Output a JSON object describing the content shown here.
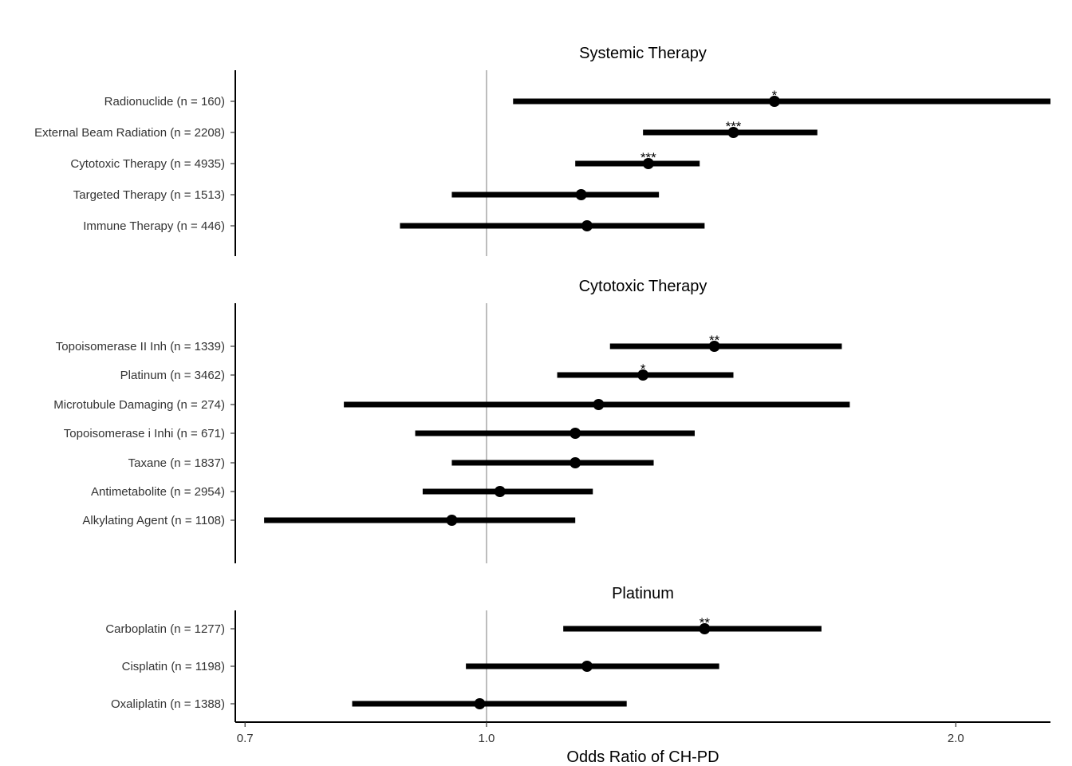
{
  "chart_data": {
    "type": "forest",
    "xlabel": "Odds Ratio of CH-PD",
    "x_scale": "log",
    "xlim": [
      0.69,
      2.3
    ],
    "xticks": [
      0.7,
      1.0,
      2.0
    ],
    "xtick_labels": [
      "0.7",
      "1.0",
      "2.0"
    ],
    "reference_line": 1.0,
    "reference_color": "#bdbdbd",
    "mark_color": "#000000",
    "panels": [
      {
        "title": "Systemic Therapy",
        "rows": [
          {
            "label": "Radionuclide (n = 160)",
            "or": 1.53,
            "lo": 1.04,
            "hi": 2.3,
            "sig": "*"
          },
          {
            "label": "External Beam Radiation (n = 2208)",
            "or": 1.44,
            "lo": 1.26,
            "hi": 1.63,
            "sig": "***"
          },
          {
            "label": "Cytotoxic Therapy (n = 4935)",
            "or": 1.27,
            "lo": 1.14,
            "hi": 1.37,
            "sig": "***"
          },
          {
            "label": "Targeted Therapy (n = 1513)",
            "or": 1.15,
            "lo": 0.95,
            "hi": 1.29,
            "sig": ""
          },
          {
            "label": "Immune Therapy (n = 446)",
            "or": 1.16,
            "lo": 0.88,
            "hi": 1.38,
            "sig": ""
          }
        ]
      },
      {
        "title": "Cytotoxic Therapy",
        "rows": [
          {
            "label": "Topoisomerase II Inh (n = 1339)",
            "or": 1.4,
            "lo": 1.2,
            "hi": 1.69,
            "sig": "**"
          },
          {
            "label": "Platinum (n = 3462)",
            "or": 1.26,
            "lo": 1.11,
            "hi": 1.44,
            "sig": "*"
          },
          {
            "label": "Microtubule Damaging (n = 274)",
            "or": 1.18,
            "lo": 0.81,
            "hi": 1.71,
            "sig": ""
          },
          {
            "label": "Topoisomerase i Inhi (n = 671)",
            "or": 1.14,
            "lo": 0.9,
            "hi": 1.36,
            "sig": ""
          },
          {
            "label": "Taxane (n = 1837)",
            "or": 1.14,
            "lo": 0.95,
            "hi": 1.28,
            "sig": ""
          },
          {
            "label": "Antimetabolite (n = 2954)",
            "or": 1.02,
            "lo": 0.91,
            "hi": 1.17,
            "sig": ""
          },
          {
            "label": "Alkylating Agent (n = 1108)",
            "or": 0.95,
            "lo": 0.72,
            "hi": 1.14,
            "sig": ""
          }
        ]
      },
      {
        "title": "Platinum",
        "rows": [
          {
            "label": "Carboplatin (n = 1277)",
            "or": 1.38,
            "lo": 1.12,
            "hi": 1.64,
            "sig": "**"
          },
          {
            "label": "Cisplatin (n = 1198)",
            "or": 1.16,
            "lo": 0.97,
            "hi": 1.41,
            "sig": ""
          },
          {
            "label": "Oxaliplatin (n = 1388)",
            "or": 0.99,
            "lo": 0.82,
            "hi": 1.23,
            "sig": ""
          }
        ]
      }
    ]
  }
}
